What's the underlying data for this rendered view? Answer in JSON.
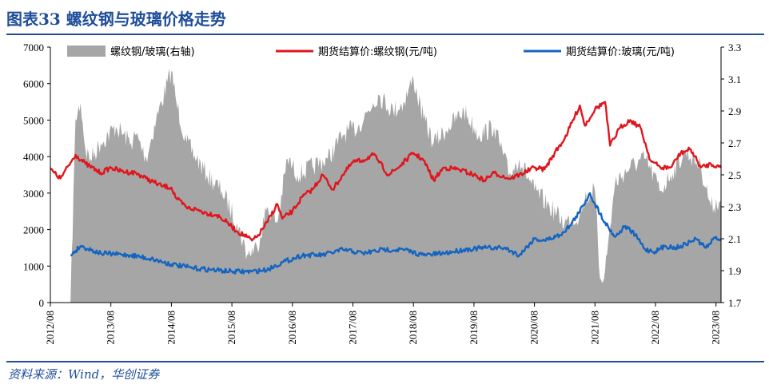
{
  "title": "图表33 螺纹钢与玻璃价格走势",
  "source": "资料来源：Wind，华创证券",
  "colors": {
    "brand": "#1f4e9a",
    "ratio": "#a6a6a6",
    "rebar": "#e0161e",
    "glass": "#1565c0"
  },
  "chart_data": {
    "type": "line",
    "left_axis": {
      "min": 0,
      "max": 7000,
      "ticks": [
        "0",
        "1000",
        "2000",
        "3000",
        "4000",
        "5000",
        "6000",
        "7000"
      ]
    },
    "right_axis": {
      "min": 1.7,
      "max": 3.3,
      "ticks": [
        "1.7",
        "1.9",
        "2.1",
        "2.3",
        "2.5",
        "2.7",
        "2.9",
        "3.1",
        "3.3"
      ]
    },
    "x_axis": {
      "start": "2012/08",
      "end": "2023/09",
      "tick_labels": [
        "2012/08",
        "2013/08",
        "2014/08",
        "2015/08",
        "2016/08",
        "2017/08",
        "2018/08",
        "2019/08",
        "2020/08",
        "2021/08",
        "2022/08",
        "2023/08"
      ]
    },
    "legend": {
      "placement": "top",
      "entries": [
        "螺纹钢/玻璃(右轴)",
        "期货结算价:螺纹钢(元/吨)",
        "期货结算价:玻璃(元/吨)"
      ]
    },
    "grid": false,
    "series": [
      {
        "name": "螺纹钢/玻璃(右轴)",
        "type": "area",
        "axis": "right",
        "x": [
          "2012/12",
          "2013/01",
          "2013/02",
          "2013/03",
          "2013/04",
          "2013/06",
          "2013/09",
          "2013/12",
          "2014/01",
          "2014/03",
          "2014/05",
          "2014/08",
          "2014/09",
          "2014/11",
          "2015/01",
          "2015/03",
          "2015/06",
          "2015/09",
          "2015/11",
          "2016/01",
          "2016/03",
          "2016/05",
          "2016/07",
          "2016/09",
          "2016/12",
          "2017/03",
          "2017/06",
          "2017/09",
          "2017/12",
          "2018/01",
          "2018/04",
          "2018/06",
          "2018/08",
          "2018/10",
          "2018/12",
          "2019/03",
          "2019/06",
          "2019/09",
          "2019/12",
          "2020/03",
          "2020/05",
          "2020/08",
          "2020/11",
          "2021/02",
          "2021/05",
          "2021/06",
          "2021/08",
          "2021/09",
          "2021/10",
          "2021/12",
          "2022/03",
          "2022/06",
          "2022/09",
          "2022/11",
          "2023/02",
          "2023/05",
          "2023/07",
          "2023/09"
        ],
        "values": [
          1.7,
          2.85,
          2.95,
          2.65,
          2.6,
          2.7,
          2.8,
          2.7,
          2.75,
          2.6,
          2.85,
          3.15,
          2.95,
          2.7,
          2.6,
          2.5,
          2.4,
          2.2,
          2.0,
          2.05,
          2.3,
          2.2,
          2.6,
          2.5,
          2.55,
          2.6,
          2.75,
          2.8,
          2.95,
          3.0,
          2.9,
          2.95,
          3.1,
          2.85,
          2.7,
          2.8,
          2.9,
          2.75,
          2.8,
          2.5,
          2.6,
          2.4,
          2.3,
          2.2,
          2.25,
          2.35,
          2.4,
          1.85,
          1.9,
          2.45,
          2.55,
          2.6,
          2.4,
          2.5,
          2.65,
          2.55,
          2.3,
          2.35
        ]
      },
      {
        "name": "期货结算价:螺纹钢(元/吨)",
        "type": "line",
        "axis": "left",
        "x": [
          "2012/08",
          "2012/10",
          "2013/01",
          "2013/03",
          "2013/06",
          "2013/08",
          "2013/10",
          "2014/01",
          "2014/03",
          "2014/06",
          "2014/08",
          "2014/09",
          "2014/11",
          "2015/01",
          "2015/03",
          "2015/05",
          "2015/07",
          "2015/09",
          "2015/11",
          "2015/12",
          "2016/01",
          "2016/03",
          "2016/05",
          "2016/06",
          "2016/08",
          "2016/10",
          "2016/12",
          "2017/02",
          "2017/04",
          "2017/06",
          "2017/08",
          "2017/10",
          "2017/12",
          "2018/01",
          "2018/03",
          "2018/05",
          "2018/08",
          "2018/10",
          "2018/12",
          "2019/02",
          "2019/05",
          "2019/08",
          "2019/10",
          "2019/12",
          "2020/03",
          "2020/05",
          "2020/08",
          "2020/10",
          "2020/12",
          "2021/02",
          "2021/05",
          "2021/06",
          "2021/08",
          "2021/10",
          "2021/11",
          "2022/01",
          "2022/03",
          "2022/05",
          "2022/07",
          "2022/09",
          "2022/11",
          "2023/01",
          "2023/03",
          "2023/05",
          "2023/07",
          "2023/09"
        ],
        "values": [
          3650,
          3400,
          4050,
          3800,
          3550,
          3700,
          3600,
          3550,
          3400,
          3200,
          3150,
          2850,
          2600,
          2550,
          2450,
          2400,
          2200,
          1950,
          1800,
          1700,
          1800,
          2200,
          2700,
          2300,
          2500,
          2900,
          3100,
          3500,
          3100,
          3500,
          3850,
          3900,
          4050,
          3900,
          3500,
          3700,
          4100,
          3900,
          3350,
          3700,
          3650,
          3500,
          3350,
          3550,
          3400,
          3500,
          3700,
          3650,
          4100,
          4500,
          5400,
          4850,
          5300,
          5500,
          4300,
          4800,
          5000,
          4800,
          3900,
          3700,
          3700,
          4100,
          4200,
          3700,
          3800,
          3700
        ]
      },
      {
        "name": "期货结算价:玻璃(元/吨)",
        "type": "line",
        "axis": "left",
        "x": [
          "2012/12",
          "2013/02",
          "2013/06",
          "2013/12",
          "2014/04",
          "2014/08",
          "2014/12",
          "2015/04",
          "2015/08",
          "2015/12",
          "2016/03",
          "2016/06",
          "2016/10",
          "2017/02",
          "2017/06",
          "2017/10",
          "2018/02",
          "2018/06",
          "2018/10",
          "2019/02",
          "2019/06",
          "2019/10",
          "2020/02",
          "2020/05",
          "2020/08",
          "2020/10",
          "2021/01",
          "2021/03",
          "2021/05",
          "2021/07",
          "2021/08",
          "2021/10",
          "2021/12",
          "2022/02",
          "2022/04",
          "2022/06",
          "2022/08",
          "2022/10",
          "2022/12",
          "2023/02",
          "2023/04",
          "2023/06",
          "2023/08",
          "2023/09"
        ],
        "values": [
          1300,
          1550,
          1350,
          1300,
          1200,
          1050,
          950,
          900,
          850,
          850,
          900,
          1100,
          1300,
          1300,
          1450,
          1350,
          1450,
          1450,
          1300,
          1350,
          1450,
          1500,
          1500,
          1300,
          1750,
          1700,
          1850,
          2100,
          2500,
          3000,
          2700,
          2200,
          1800,
          2100,
          1850,
          1450,
          1400,
          1550,
          1500,
          1600,
          1750,
          1500,
          1800,
          1700
        ]
      }
    ]
  }
}
